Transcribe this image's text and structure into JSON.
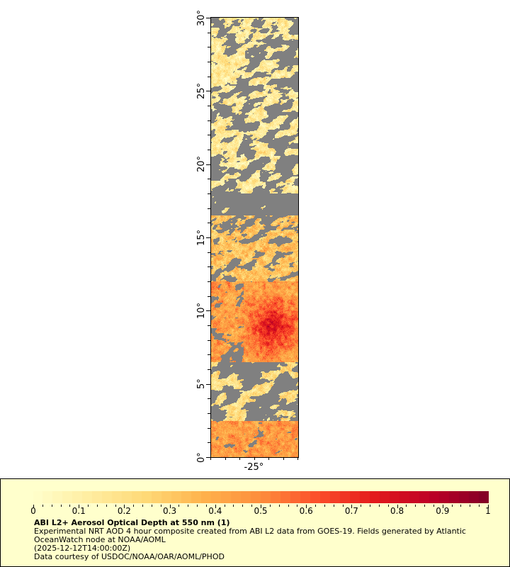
{
  "map": {
    "y_axis": {
      "ticks": [
        0,
        5,
        10,
        15,
        20,
        25,
        30
      ],
      "labels": [
        "0°",
        "5°",
        "10°",
        "15°",
        "20°",
        "25°",
        "30°"
      ],
      "range": [
        0,
        30
      ]
    },
    "x_axis": {
      "ticks": [
        -25
      ],
      "labels": [
        "-25°"
      ],
      "range": [
        -28,
        -22
      ]
    },
    "land_no_data_color": "#808080"
  },
  "colorbar": {
    "min": 0,
    "max": 1,
    "tick_labels": [
      "0",
      "0.1",
      "0.2",
      "0.3",
      "0.4",
      "0.5",
      "0.6",
      "0.7",
      "0.8",
      "0.9",
      "1"
    ],
    "colors": [
      "#ffffcc",
      "#ffeda0",
      "#fed976",
      "#feb24c",
      "#fd8d3c",
      "#fc4e2a",
      "#e31a1c",
      "#bd0026",
      "#800026"
    ]
  },
  "legend": {
    "title": "ABI L2+ Aerosol Optical Depth at 550 nm (1)",
    "line1": "Experimental NRT AOD 4 hour composite created from ABI L2 data from GOES-19. Fields generated by Atlantic",
    "line2": "OceanWatch node at NOAA/AOML",
    "line3": "(2025-12-12T14:00:00Z)",
    "line4": "Data courtesy of USDOC/NOAA/OAR/AOML/PHOD"
  }
}
